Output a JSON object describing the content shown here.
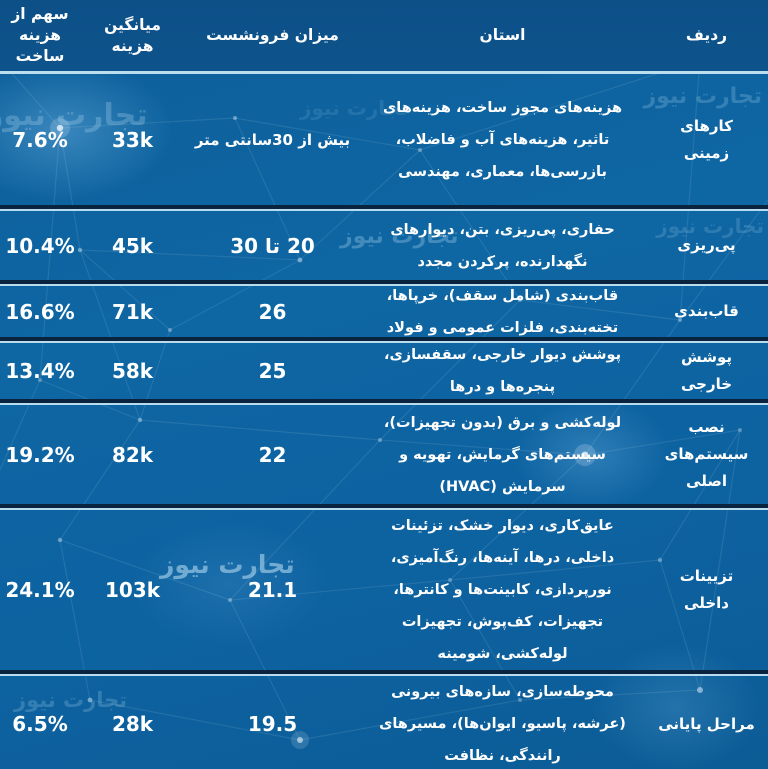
{
  "watermark_text": "تجارت نیوز",
  "colors": {
    "header_bg": "#0d5188",
    "body_bg": "#0e66a3",
    "separator_dark": "#0a2440",
    "separator_light": "#b7dcef",
    "text": "#ffffff",
    "watermark": "#bfe2f7"
  },
  "chart_data": {
    "type": "table",
    "title": "",
    "legend_position": "none",
    "columns": [
      {
        "label": "ردیف"
      },
      {
        "label": "استان"
      },
      {
        "label": "میزان فرونشست"
      },
      {
        "label": "میانگین هزینه"
      },
      {
        "label": "سهم از هزینه ساخت"
      }
    ],
    "rows": [
      {
        "label": "کارهای زمینی",
        "activities": "هزینه‌های مجوز ساخت، هزینه‌های تاثیر، هزینه‌های آب و فاضلاب، بازرسی‌ها، معماری، مهندسی",
        "subsidence": "بیش از 30سانتی متر",
        "avg_cost": "33k",
        "share": "7.6%"
      },
      {
        "label": "پی‌ریزی",
        "activities": "حفاری، پی‌ریزی، بتن، دیوارهای نگهدارنده، پرکردن مجدد",
        "subsidence": "20 تا 30",
        "avg_cost": "45k",
        "share": "10.4%"
      },
      {
        "label": "قاب‌بندی",
        "activities": "قاب‌بندی (شامل سقف)، خرپاها، تخته‌بندی، فلزات عمومی و فولاد",
        "subsidence": "26",
        "avg_cost": "71k",
        "share": "16.6%"
      },
      {
        "label": "پوشش خارجی",
        "activities": "پوشش دیوار خارجی، سقفسازی، پنجره‌ها و درها",
        "subsidence": "25",
        "avg_cost": "58k",
        "share": "13.4%"
      },
      {
        "label": "نصب سیستم‌های اصلی",
        "activities": "لوله‌کشی و برق (بدون تجهیزات)، سیستم‌های گرمایش، تهویه و سرمایش (HVAC)",
        "subsidence": "22",
        "avg_cost": "82k",
        "share": "19.2%"
      },
      {
        "label": "تزیینات داخلی",
        "activities": "عایق‌کاری، دیوار خشک، تزئینات داخلی، درها، آینه‌ها، رنگ‌آمیزی، نورپردازی، کابینت‌ها و کانترها، تجهیزات، کف‌پوش، تجهیزات لوله‌کشی، شومینه",
        "subsidence": "21.1",
        "avg_cost": "103k",
        "share": "24.1%"
      },
      {
        "label": "مراحل پایانی",
        "activities": "محوطه‌سازی، سازه‌های بیرونی (عرشه، پاسیو، ایوان‌ها)، مسیرهای رانندگی، نظافت",
        "subsidence": "19.5",
        "avg_cost": "28k",
        "share": "6.5%"
      }
    ]
  }
}
